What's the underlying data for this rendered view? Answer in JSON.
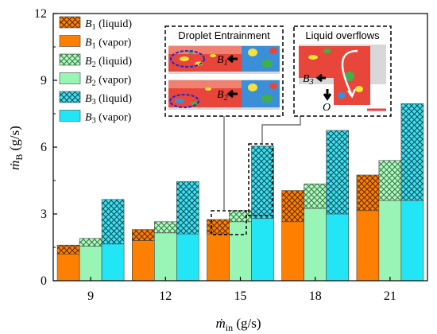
{
  "chart_data": {
    "type": "bar",
    "categories": [
      "9",
      "12",
      "15",
      "18",
      "21"
    ],
    "series": [
      {
        "name": "B1",
        "vapor": [
          1.2,
          1.8,
          2.1,
          2.65,
          3.15
        ],
        "liquid": [
          0.4,
          0.5,
          0.65,
          1.4,
          1.6
        ],
        "color": "#ff8000"
      },
      {
        "name": "B2",
        "vapor": [
          1.55,
          2.15,
          2.65,
          3.25,
          3.6
        ],
        "liquid": [
          0.35,
          0.5,
          0.5,
          1.1,
          1.8
        ],
        "color": "#99f5b5"
      },
      {
        "name": "B3",
        "vapor": [
          1.65,
          2.1,
          2.8,
          3.0,
          3.6
        ],
        "liquid": [
          2.0,
          2.35,
          3.25,
          3.75,
          4.35
        ],
        "color": "#22e6f5"
      }
    ],
    "ylim": [
      0,
      12
    ],
    "yticks": [
      "0",
      "3",
      "6",
      "9",
      "12"
    ],
    "legend": {
      "placement": "top-left",
      "entries": [
        {
          "base": "B",
          "sub": "1",
          "suffix": " (liquid)",
          "series": 0,
          "kind": "liquid"
        },
        {
          "base": "B",
          "sub": "1",
          "suffix": " (vapor)",
          "series": 0,
          "kind": "vapor"
        },
        {
          "base": "B",
          "sub": "2",
          "suffix": " (liquid)",
          "series": 1,
          "kind": "liquid"
        },
        {
          "base": "B",
          "sub": "2",
          "suffix": " (vapor)",
          "series": 1,
          "kind": "vapor"
        },
        {
          "base": "B",
          "sub": "3",
          "suffix": " (liquid)",
          "series": 2,
          "kind": "liquid"
        },
        {
          "base": "B",
          "sub": "3",
          "suffix": " (vapor)",
          "series": 2,
          "kind": "vapor"
        }
      ]
    },
    "xlabel": {
      "main": "ṁ",
      "sub": "in",
      "unit": " (g/s)"
    },
    "ylabel": {
      "main": "ṁ",
      "sub": "B",
      "unit": " (g/s)"
    }
  },
  "insets": {
    "droplet": {
      "title": "Droplet Entrainment",
      "label_top": {
        "base": "B",
        "sub": "1"
      },
      "label_bottom": {
        "base": "B",
        "sub": "2"
      }
    },
    "overflow": {
      "title": "Liquid overflows",
      "label_b": {
        "base": "B",
        "sub": "3"
      },
      "label_o": "O"
    }
  }
}
